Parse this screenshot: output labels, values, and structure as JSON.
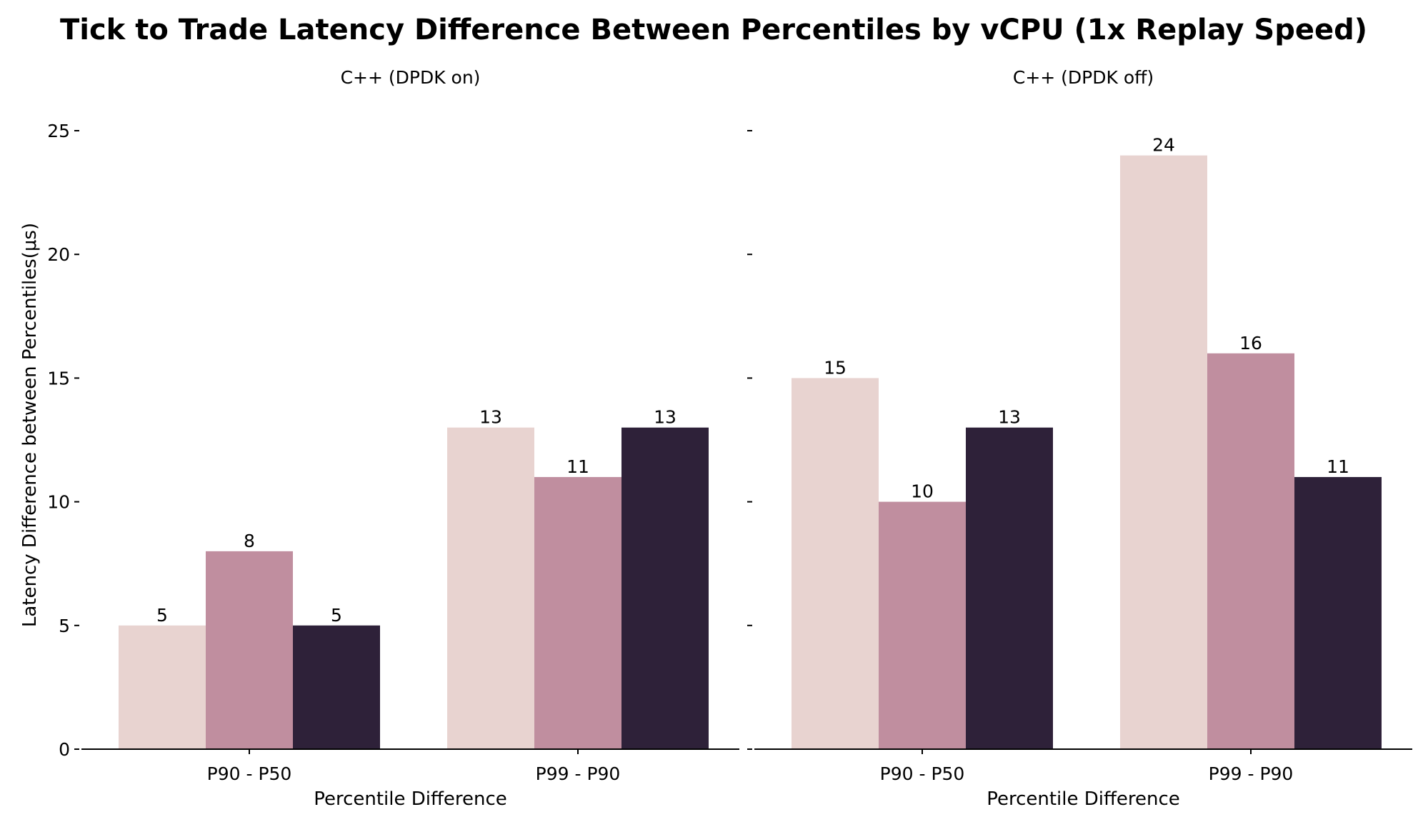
{
  "chart_data": {
    "type": "bar",
    "title": "Tick to Trade Latency Difference Between Percentiles by vCPU (1x Replay Speed)",
    "ylabel": "Latency Difference between Percentiles(μs)",
    "ylim": [
      0,
      25
    ],
    "yticks": [
      0,
      5,
      10,
      15,
      20,
      25
    ],
    "grid": false,
    "legend": "none",
    "colors": [
      "#e8d3d0",
      "#c08e9f",
      "#2e2139"
    ],
    "panels": [
      {
        "subtitle": "C++ (DPDK on)",
        "xlabel": "Percentile Difference",
        "categories": [
          "P90 - P50",
          "P99 - P90"
        ],
        "series": [
          {
            "values": [
              5,
              13
            ]
          },
          {
            "values": [
              8,
              11
            ]
          },
          {
            "values": [
              5,
              13
            ]
          }
        ]
      },
      {
        "subtitle": "C++ (DPDK off)",
        "xlabel": "Percentile Difference",
        "categories": [
          "P90 - P50",
          "P99 - P90"
        ],
        "series": [
          {
            "values": [
              15,
              24
            ]
          },
          {
            "values": [
              10,
              16
            ]
          },
          {
            "values": [
              13,
              11
            ]
          }
        ]
      }
    ]
  }
}
